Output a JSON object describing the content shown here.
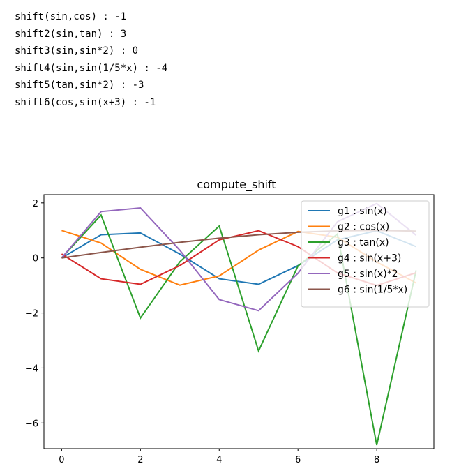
{
  "output": {
    "lines": [
      "shift(sin,cos) : -1",
      "shift2(sin,tan) : 3",
      "shift3(sin,sin*2) : 0",
      "shift4(sin,sin(1/5*x) : -4",
      "shift5(tan,sin*2) : -3",
      "shift6(cos,sin(x+3) : -1"
    ]
  },
  "chart_data": {
    "type": "line",
    "title": "compute_shift",
    "xlabel": "",
    "ylabel": "",
    "xlim": [
      -0.45,
      9.45
    ],
    "ylim": [
      -6.93,
      2.3
    ],
    "x": [
      0,
      1,
      2,
      3,
      4,
      5,
      6,
      7,
      8,
      9
    ],
    "xticks": [
      0,
      2,
      4,
      6,
      8
    ],
    "yticks": [
      2,
      0,
      -2,
      -4,
      -6
    ],
    "ytick_labels": [
      "2",
      "0",
      "−2",
      "−4",
      "−6"
    ],
    "grid": false,
    "legend_position": "top-right",
    "series": [
      {
        "name": "g1 : sin(x)",
        "color": "#1f77b4",
        "values": [
          0.0,
          0.841,
          0.909,
          0.141,
          -0.757,
          -0.959,
          -0.279,
          0.657,
          0.989,
          0.412
        ]
      },
      {
        "name": "g2 : cos(x)",
        "color": "#ff7f0e",
        "values": [
          1.0,
          0.54,
          -0.416,
          -0.99,
          -0.654,
          0.284,
          0.96,
          0.754,
          -0.146,
          -0.911
        ]
      },
      {
        "name": "g3 : tan(x)",
        "color": "#2ca02c",
        "values": [
          0.0,
          1.557,
          -2.185,
          -0.143,
          1.158,
          -3.381,
          -0.291,
          0.871,
          -6.8,
          -0.452
        ]
      },
      {
        "name": "g4 : sin(x+3)",
        "color": "#d62728",
        "values": [
          0.141,
          -0.757,
          -0.959,
          -0.279,
          0.657,
          0.989,
          0.412,
          -0.544,
          -1.0,
          -0.537
        ]
      },
      {
        "name": "g5 : sin(x)*2",
        "color": "#9467bd",
        "values": [
          0.0,
          1.683,
          1.819,
          0.282,
          -1.514,
          -1.918,
          -0.559,
          1.314,
          1.979,
          0.824
        ]
      },
      {
        "name": "g6 : sin(1/5*x)",
        "color": "#8c564b",
        "values": [
          0.0,
          0.199,
          0.389,
          0.565,
          0.717,
          0.841,
          0.932,
          0.985,
          0.9996,
          0.974
        ]
      }
    ]
  }
}
